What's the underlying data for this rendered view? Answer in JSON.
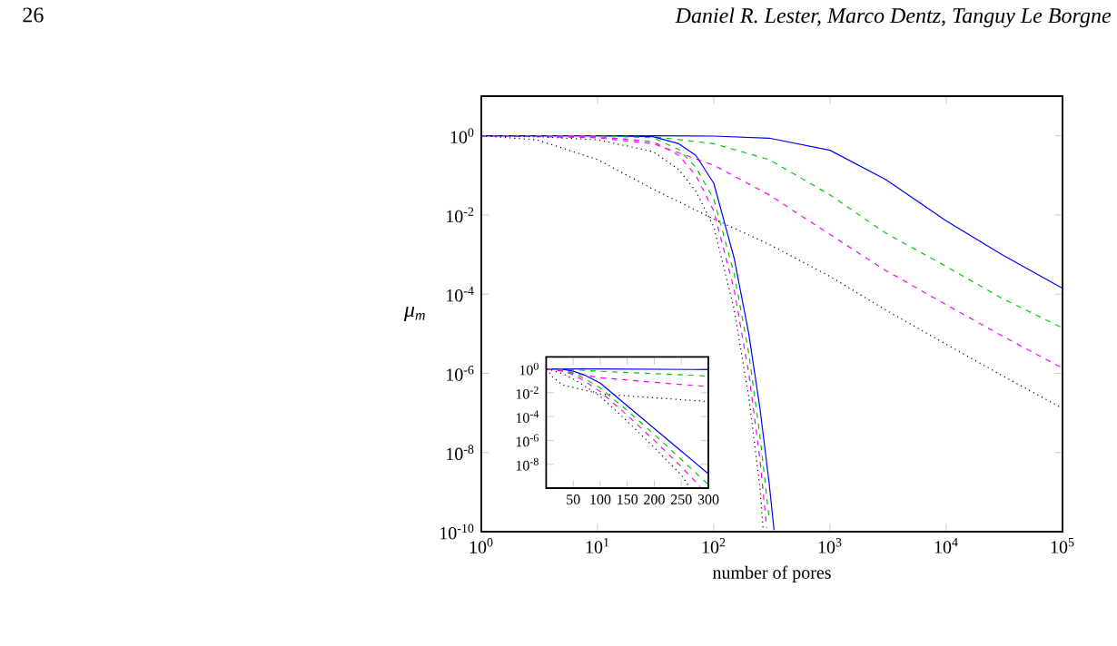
{
  "chart_data": [
    {
      "type": "line",
      "log": "xy",
      "marker": "none",
      "xlabel": "number of pores",
      "ylabel": "μ$_{m}$",
      "annotations": [
        "26",
        "Daniel R. Lester, Marco Dentz, Tanguy Le Borgne"
      ],
      "xlim": [
        1,
        100000
      ],
      "ylim": [
        1e-10,
        10
      ],
      "xticks": [
        {
          "value": 1,
          "label": "10$^{0}$"
        },
        {
          "value": 10,
          "label": "10$^{1}$"
        },
        {
          "value": 100,
          "label": "10$^{2}$"
        },
        {
          "value": 1000,
          "label": "10$^{3}$"
        },
        {
          "value": 10000,
          "label": "10$^{4}$"
        },
        {
          "value": 100000,
          "label": "10$^{5}$"
        }
      ],
      "yticks": [
        {
          "value": 1e-10,
          "label": "10$^{-10}$"
        },
        {
          "value": 1e-08,
          "label": "10$^{-8}$"
        },
        {
          "value": 1e-06,
          "label": "10$^{-6}$"
        },
        {
          "value": 0.0001,
          "label": "10$^{-4}$"
        },
        {
          "value": 0.01,
          "label": "10$^{-2}$"
        },
        {
          "value": 1,
          "label": "10$^{0}$"
        }
      ],
      "series": [
        {
          "color": "#0000ff",
          "line_style": "solid",
          "x": [
            1,
            3,
            10,
            30,
            100,
            300,
            1000,
            3000,
            10000,
            30000,
            100000
          ],
          "values": [
            1,
            1,
            1,
            1,
            0.98,
            0.87,
            0.43,
            0.079,
            0.0071,
            0.001,
            0.00014
          ]
        },
        {
          "color": "#00cc00",
          "line_style": "dashed",
          "x": [
            1,
            3,
            10,
            30,
            100,
            300,
            1000,
            3000,
            10000,
            30000,
            100000
          ],
          "values": [
            1,
            1,
            1,
            0.95,
            0.63,
            0.25,
            0.032,
            0.0035,
            0.0005,
            7.9e-05,
            1.4e-05
          ]
        },
        {
          "color": "#ff00ff",
          "line_style": "dashed",
          "x": [
            1,
            3,
            10,
            30,
            100,
            300,
            1000,
            3000,
            10000,
            30000,
            100000
          ],
          "values": [
            1,
            0.95,
            0.89,
            0.63,
            0.18,
            0.032,
            0.0032,
            0.0004,
            5.4e-05,
            8.9e-06,
            1.35e-06
          ]
        },
        {
          "color": "#000000",
          "line_style": "dotted",
          "x": [
            1,
            3,
            10,
            30,
            100,
            300,
            1000,
            3000,
            10000,
            30000,
            100000
          ],
          "values": [
            1,
            0.79,
            0.25,
            0.045,
            0.0079,
            0.0018,
            0.00028,
            4e-05,
            5.4e-06,
            8.9e-07,
            1.3e-07
          ]
        },
        {
          "color": "#0000ff",
          "line_style": "solid",
          "x": [
            1,
            10,
            30,
            50,
            70,
            100,
            150,
            200,
            250,
            300,
            330
          ],
          "values": [
            1,
            1,
            0.95,
            0.63,
            0.32,
            0.063,
            0.00079,
            1e-05,
            1.26e-07,
            1.6e-09,
            1.1e-10
          ]
        },
        {
          "color": "#00cc00",
          "line_style": "dashed",
          "x": [
            1,
            10,
            30,
            50,
            70,
            100,
            150,
            200,
            250,
            300
          ],
          "values": [
            1,
            1,
            0.89,
            0.45,
            0.16,
            0.025,
            0.00032,
            3.2e-06,
            2.5e-08,
            2e-10
          ]
        },
        {
          "color": "#ff00ff",
          "line_style": "dashed",
          "x": [
            1,
            10,
            30,
            50,
            70,
            100,
            150,
            200,
            250,
            285
          ],
          "values": [
            1,
            0.95,
            0.71,
            0.32,
            0.1,
            0.0126,
            0.000126,
            1e-06,
            6.3e-09,
            1.26e-10
          ]
        },
        {
          "color": "#000000",
          "line_style": "dotted",
          "x": [
            1,
            3,
            10,
            30,
            50,
            70,
            100,
            150,
            200,
            250,
            265
          ],
          "values": [
            1,
            0.95,
            0.79,
            0.4,
            0.14,
            0.04,
            0.005,
            4e-05,
            2.5e-07,
            1.26e-09,
            1.26e-10
          ]
        }
      ]
    },
    {
      "type": "line",
      "log": "y",
      "marker": "none",
      "xlim": [
        0,
        300
      ],
      "ylim": [
        1e-10,
        10
      ],
      "xticks": [
        50,
        100,
        150,
        200,
        250,
        300
      ],
      "yticks": [
        {
          "value": 1e-08,
          "label": "10$^{-8}$"
        },
        {
          "value": 1e-06,
          "label": "10$^{-6}$"
        },
        {
          "value": 0.0001,
          "label": "10$^{-4}$"
        },
        {
          "value": 0.01,
          "label": "10$^{-2}$"
        },
        {
          "value": 1,
          "label": "10$^{0}$"
        }
      ],
      "series": [
        {
          "color": "#0000ff",
          "line_style": "solid",
          "x": [
            1,
            3,
            10,
            30,
            100,
            300
          ],
          "values": [
            1,
            1,
            1,
            1,
            0.98,
            0.87
          ]
        },
        {
          "color": "#00cc00",
          "line_style": "dashed",
          "x": [
            1,
            3,
            10,
            30,
            100,
            300
          ],
          "values": [
            1,
            1,
            1,
            0.95,
            0.63,
            0.25
          ]
        },
        {
          "color": "#ff00ff",
          "line_style": "dashed",
          "x": [
            1,
            3,
            10,
            30,
            100,
            300
          ],
          "values": [
            1,
            0.95,
            0.89,
            0.63,
            0.18,
            0.032
          ]
        },
        {
          "color": "#000000",
          "line_style": "dotted",
          "x": [
            1,
            3,
            10,
            30,
            100,
            300
          ],
          "values": [
            1,
            0.79,
            0.25,
            0.045,
            0.0079,
            0.0018
          ]
        },
        {
          "color": "#0000ff",
          "line_style": "solid",
          "x": [
            1,
            10,
            30,
            50,
            70,
            100,
            150,
            200,
            250,
            300
          ],
          "values": [
            1,
            1,
            0.95,
            0.63,
            0.32,
            0.063,
            0.00079,
            1e-05,
            1.26e-07,
            1.6e-09
          ]
        },
        {
          "color": "#00cc00",
          "line_style": "dashed",
          "x": [
            1,
            10,
            30,
            50,
            70,
            100,
            150,
            200,
            250,
            300
          ],
          "values": [
            1,
            1,
            0.89,
            0.45,
            0.16,
            0.025,
            0.00032,
            3.2e-06,
            2.5e-08,
            2e-10
          ]
        },
        {
          "color": "#ff00ff",
          "line_style": "dashed",
          "x": [
            1,
            10,
            30,
            50,
            70,
            100,
            150,
            200,
            250,
            285
          ],
          "values": [
            1,
            0.95,
            0.71,
            0.32,
            0.1,
            0.0126,
            0.000126,
            1e-06,
            6.3e-09,
            1.26e-10
          ]
        },
        {
          "color": "#000000",
          "line_style": "dotted",
          "x": [
            1,
            3,
            10,
            30,
            50,
            70,
            100,
            150,
            200,
            250,
            265
          ],
          "values": [
            1,
            0.95,
            0.79,
            0.4,
            0.14,
            0.04,
            0.005,
            4e-05,
            2.5e-07,
            1.26e-09,
            1.26e-10
          ]
        }
      ]
    }
  ]
}
